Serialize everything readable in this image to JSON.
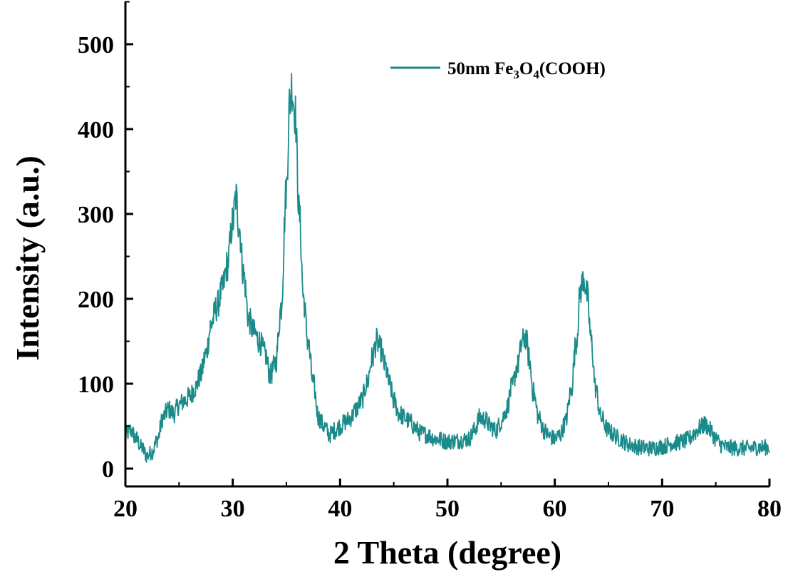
{
  "chart_data": {
    "type": "line",
    "title": "",
    "xlabel": "2 Theta (degree)",
    "ylabel": "Intensity (a.u.)",
    "xlim": [
      20,
      80
    ],
    "ylim": [
      -10,
      550
    ],
    "xticks": [
      20,
      30,
      40,
      50,
      60,
      70,
      80
    ],
    "yticks": [
      0,
      100,
      200,
      300,
      400,
      500
    ],
    "xtick_labels": [
      "20",
      "30",
      "40",
      "50",
      "60",
      "70",
      "80"
    ],
    "ytick_labels": [
      "0",
      "100",
      "200",
      "300",
      "400",
      "500"
    ],
    "grid": false,
    "legend_position": "top-right",
    "series": [
      {
        "name": "50nm Fe3O4(COOH)",
        "legend": {
          "base": "50nm Fe",
          "sub1": "3",
          "mid": "O",
          "sub2": "4",
          "tail": "(COOH)"
        },
        "color": "#1a8a8a",
        "noise": 14,
        "x": [
          20.0,
          20.5,
          21.0,
          21.5,
          22.0,
          22.5,
          23.0,
          23.5,
          24.0,
          24.5,
          25.0,
          25.5,
          26.0,
          26.5,
          27.0,
          27.5,
          28.0,
          28.5,
          29.0,
          29.5,
          30.0,
          30.3,
          30.6,
          31.0,
          31.5,
          32.0,
          32.5,
          33.0,
          33.5,
          34.0,
          34.5,
          35.0,
          35.3,
          35.5,
          35.8,
          36.2,
          36.6,
          37.0,
          37.5,
          38.0,
          38.5,
          39.0,
          39.5,
          40.0,
          40.5,
          41.0,
          41.5,
          42.0,
          42.5,
          43.0,
          43.4,
          43.8,
          44.2,
          44.6,
          45.0,
          45.5,
          46.0,
          46.5,
          47.0,
          47.5,
          48.0,
          49.0,
          50.0,
          51.0,
          52.0,
          52.5,
          53.0,
          53.5,
          54.0,
          54.5,
          55.0,
          55.5,
          56.0,
          56.5,
          57.0,
          57.3,
          57.6,
          58.0,
          58.5,
          59.0,
          59.5,
          60.0,
          60.5,
          61.0,
          61.5,
          62.0,
          62.4,
          62.7,
          63.0,
          63.4,
          63.8,
          64.3,
          65.0,
          65.5,
          66.0,
          67.0,
          68.0,
          69.0,
          70.0,
          71.0,
          72.0,
          72.5,
          73.0,
          73.5,
          74.0,
          74.5,
          75.0,
          75.5,
          76.0,
          77.0,
          78.0,
          79.0,
          80.0
        ],
        "y": [
          40,
          45,
          35,
          25,
          15,
          20,
          35,
          60,
          70,
          65,
          75,
          80,
          85,
          95,
          110,
          135,
          170,
          190,
          210,
          240,
          290,
          320,
          285,
          230,
          175,
          160,
          150,
          135,
          110,
          125,
          190,
          330,
          430,
          450,
          420,
          300,
          200,
          150,
          100,
          60,
          50,
          40,
          45,
          50,
          55,
          60,
          70,
          80,
          100,
          130,
          150,
          140,
          120,
          100,
          80,
          65,
          60,
          55,
          48,
          42,
          40,
          35,
          32,
          33,
          35,
          45,
          60,
          58,
          50,
          45,
          55,
          70,
          95,
          120,
          150,
          155,
          130,
          90,
          60,
          45,
          38,
          35,
          40,
          55,
          90,
          150,
          210,
          225,
          205,
          150,
          95,
          60,
          45,
          40,
          35,
          28,
          25,
          24,
          26,
          30,
          32,
          35,
          42,
          48,
          52,
          45,
          35,
          28,
          25,
          24,
          24,
          25,
          25
        ]
      }
    ]
  }
}
